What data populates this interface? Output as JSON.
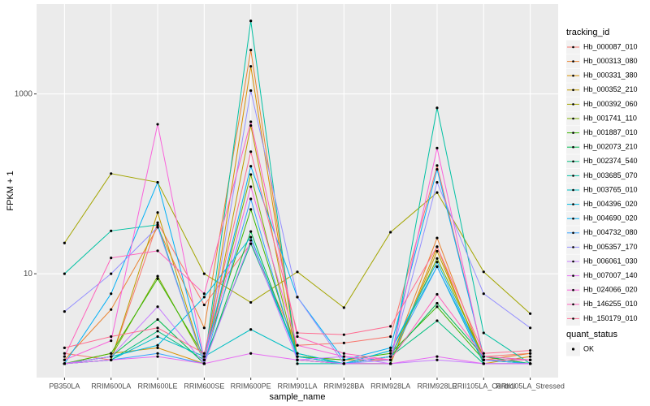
{
  "chart_data": {
    "type": "line",
    "x_label": "sample_name",
    "y_label": "FPKM + 1",
    "log_scale": true,
    "grid": true,
    "categories": [
      "PB350LA",
      "RRIM600LA",
      "RRIM600LE",
      "RRIM600SE",
      "RRIM600PE",
      "RRIM901LA",
      "RRIM928BA",
      "RRIM928LA",
      "RRIM928LE",
      "RRII105LA_Control",
      "RRII105LA_Stressed"
    ],
    "ylim": [
      0.7,
      10000
    ],
    "yticks": [
      10,
      1000
    ],
    "legend_title": "tracking_id",
    "point_legend": {
      "title": "quant_status",
      "label": "OK",
      "color": "#000000"
    },
    "series": [
      {
        "name": "Hb_000087_010",
        "color": "#F8766D",
        "values": [
          1.3,
          1.1,
          37,
          4.5,
          21.6,
          1.6,
          1.7,
          2,
          160,
          1.2,
          1.3
        ]
      },
      {
        "name": "Hb_000313_080",
        "color": "#EA8331",
        "values": [
          1.1,
          4,
          33,
          2.5,
          3080,
          1.2,
          1.1,
          1.1,
          25,
          1.1,
          1.3
        ]
      },
      {
        "name": "Hb_000331_380",
        "color": "#D89000",
        "values": [
          1,
          1.3,
          1.5,
          1,
          2030,
          1.1,
          1,
          1,
          20,
          1,
          1.2
        ]
      },
      {
        "name": "Hb_000352_210",
        "color": "#C09B00",
        "values": [
          1,
          1.1,
          48,
          1,
          445,
          1.1,
          1,
          1,
          17.8,
          1.1,
          1.1
        ]
      },
      {
        "name": "Hb_000392_060",
        "color": "#A3A500",
        "values": [
          22,
          130,
          104,
          10,
          4.8,
          10.5,
          4.2,
          29,
          80,
          10.5,
          3.6
        ]
      },
      {
        "name": "Hb_001741_110",
        "color": "#7CAE00",
        "values": [
          1,
          1.2,
          9.4,
          1.1,
          127,
          1.1,
          1,
          1.2,
          14.8,
          1.2,
          1
        ]
      },
      {
        "name": "Hb_001887_010",
        "color": "#39B600",
        "values": [
          1,
          1.3,
          8.8,
          1.2,
          52,
          1.2,
          1.1,
          1.3,
          4.3,
          1.1,
          1
        ]
      },
      {
        "name": "Hb_002073_210",
        "color": "#00BB4E",
        "values": [
          1,
          1.2,
          3.1,
          1,
          29.5,
          1.2,
          1,
          1.2,
          4.7,
          1.2,
          1
        ]
      },
      {
        "name": "Hb_002374_540",
        "color": "#00BF7D",
        "values": [
          1,
          1.1,
          2.3,
          1.1,
          21.6,
          1.3,
          1,
          1.2,
          3,
          1,
          1
        ]
      },
      {
        "name": "Hb_003685_070",
        "color": "#00C1A3",
        "values": [
          10,
          30,
          35,
          1,
          6500,
          1,
          1,
          1,
          700,
          2.2,
          1
        ]
      },
      {
        "name": "Hb_003765_010",
        "color": "#00BFC4",
        "values": [
          1,
          1.1,
          2,
          1.2,
          2.4,
          1.3,
          1,
          1.4,
          12,
          1,
          1
        ]
      },
      {
        "name": "Hb_004396_020",
        "color": "#00BAE0",
        "values": [
          1,
          1.2,
          1.6,
          5.5,
          25.5,
          1.2,
          1,
          1.4,
          13.5,
          1.1,
          1
        ]
      },
      {
        "name": "Hb_004690_020",
        "color": "#00B0F6",
        "values": [
          1,
          6,
          104,
          1.1,
          157,
          5.5,
          1.1,
          1.5,
          145,
          1.2,
          1.1
        ]
      },
      {
        "name": "Hb_004732_080",
        "color": "#35A2FF",
        "values": [
          1,
          1.1,
          1.3,
          1,
          68,
          1.1,
          1,
          1.2,
          12,
          1.1,
          1
        ]
      },
      {
        "name": "Hb_005357_170",
        "color": "#9590FF",
        "values": [
          3.8,
          10,
          33,
          1,
          1090,
          5.5,
          1,
          1.1,
          104,
          6,
          2.5
        ]
      },
      {
        "name": "Hb_006061_030",
        "color": "#C77CFF",
        "values": [
          1,
          1.2,
          4.3,
          1,
          23.5,
          1.1,
          1.2,
          1,
          1.1,
          1,
          1
        ]
      },
      {
        "name": "Hb_007007_140",
        "color": "#E76BF3",
        "values": [
          1,
          1.1,
          1.2,
          1,
          1.3,
          1.1,
          1,
          1,
          1.2,
          1,
          1
        ]
      },
      {
        "name": "Hb_024066_020",
        "color": "#FA62DB",
        "values": [
          1.1,
          1.8,
          460,
          1.1,
          93,
          1.6,
          1.2,
          1.1,
          250,
          1.1,
          1.1
        ]
      },
      {
        "name": "Hb_146255_010",
        "color": "#FF62BC",
        "values": [
          1.2,
          15,
          18,
          6,
          490,
          2,
          1.3,
          1.1,
          5.9,
          1.2,
          1.1
        ]
      },
      {
        "name": "Hb_150179_010",
        "color": "#FF6C91",
        "values": [
          1.5,
          2,
          2.5,
          1.3,
          228,
          2.2,
          2.1,
          2.6,
          20,
          1.3,
          1.4
        ]
      }
    ]
  }
}
